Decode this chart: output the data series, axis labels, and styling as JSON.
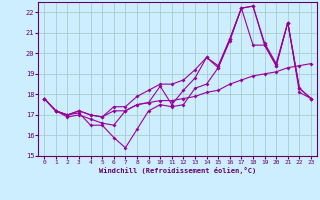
{
  "xlabel": "Windchill (Refroidissement éolien,°C)",
  "xlim": [
    -0.5,
    23.5
  ],
  "ylim": [
    15,
    22.5
  ],
  "yticks": [
    15,
    16,
    17,
    18,
    19,
    20,
    21,
    22
  ],
  "xticks": [
    0,
    1,
    2,
    3,
    4,
    5,
    6,
    7,
    8,
    9,
    10,
    11,
    12,
    13,
    14,
    15,
    16,
    17,
    18,
    19,
    20,
    21,
    22,
    23
  ],
  "bg_color": "#cceeff",
  "grid_color": "#aacccc",
  "line_color": "#990099",
  "series": [
    [
      17.8,
      17.2,
      17.0,
      17.1,
      16.5,
      16.5,
      15.9,
      15.4,
      16.3,
      17.2,
      17.5,
      17.4,
      17.5,
      18.3,
      18.5,
      19.3,
      20.6,
      22.2,
      22.3,
      20.4,
      19.4,
      21.5,
      18.1,
      17.8
    ],
    [
      17.8,
      17.2,
      16.9,
      17.0,
      16.8,
      16.6,
      16.5,
      17.2,
      17.5,
      17.6,
      18.4,
      17.5,
      18.2,
      18.8,
      19.8,
      19.3,
      20.7,
      22.2,
      20.4,
      20.4,
      19.4,
      21.5,
      18.3,
      17.8
    ],
    [
      17.8,
      17.2,
      17.0,
      17.2,
      17.0,
      16.9,
      17.2,
      17.2,
      17.5,
      17.6,
      17.7,
      17.7,
      17.8,
      17.9,
      18.1,
      18.2,
      18.5,
      18.7,
      18.9,
      19.0,
      19.1,
      19.3,
      19.4,
      19.5
    ],
    [
      17.8,
      17.2,
      17.0,
      17.2,
      17.0,
      16.9,
      17.4,
      17.4,
      17.9,
      18.2,
      18.5,
      18.5,
      18.7,
      19.2,
      19.8,
      19.4,
      20.7,
      22.2,
      22.3,
      20.5,
      19.5,
      21.5,
      18.3,
      17.8
    ]
  ]
}
